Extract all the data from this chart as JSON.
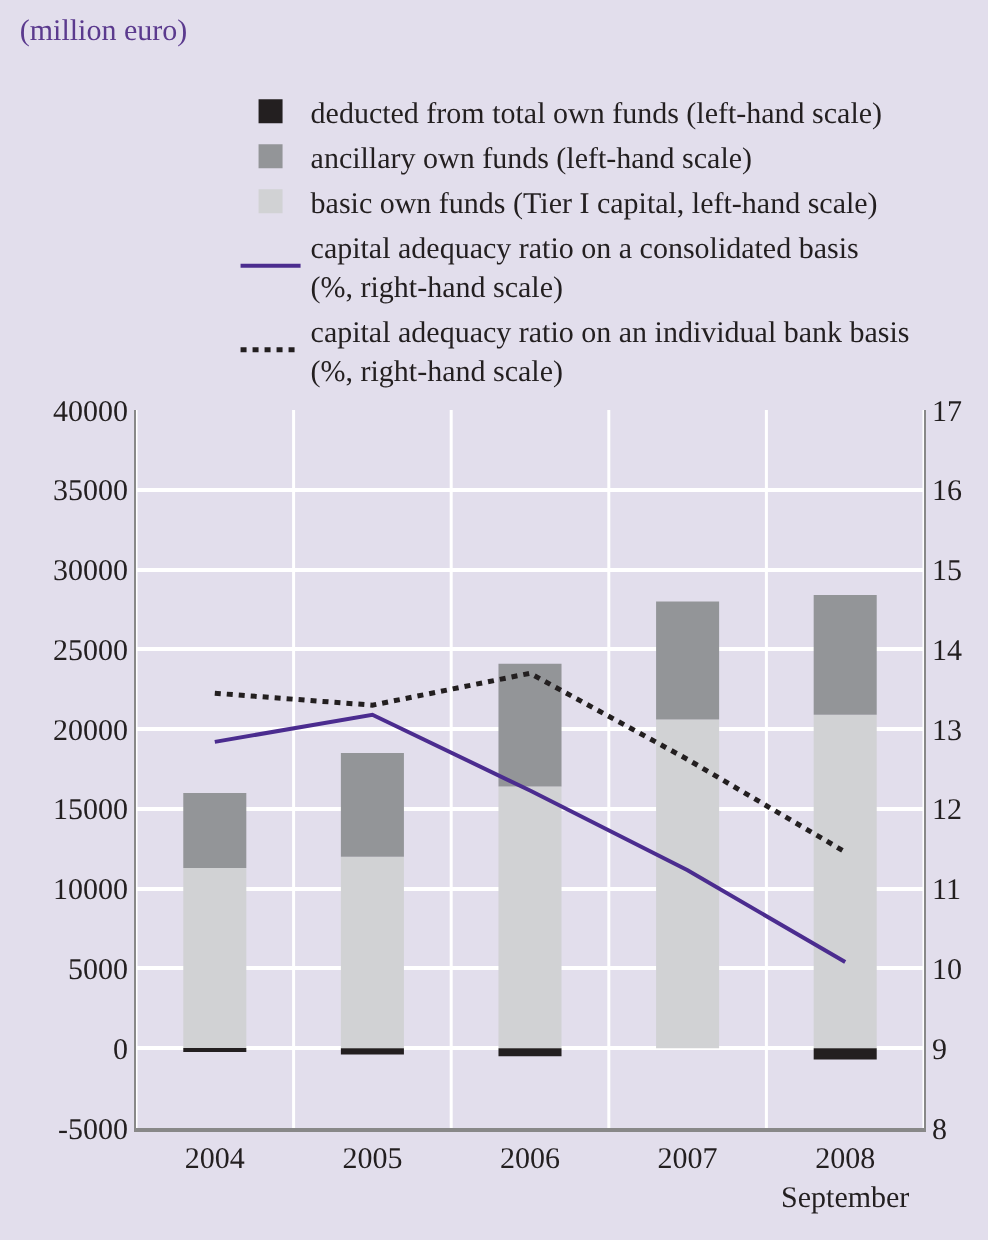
{
  "chart_data": {
    "type": "bar",
    "title": "(million euro)",
    "categories": [
      "2004",
      "2005",
      "2006",
      "2007",
      "2008\nSeptember"
    ],
    "stacked": true,
    "series": [
      {
        "name": "basic own funds (Tier I capital, left-hand scale)",
        "color": "#d1d2d4",
        "values": [
          11300,
          12000,
          16400,
          20600,
          20900
        ]
      },
      {
        "name": "ancillary own funds (left-hand scale)",
        "color": "#939598",
        "values": [
          4700,
          6500,
          7700,
          7400,
          7500
        ]
      },
      {
        "name": "deducted from total own funds (left-hand scale)",
        "color": "#231f20",
        "values": [
          -200,
          -400,
          -500,
          0,
          -700
        ]
      },
      {
        "name": "capital adequacy ratio on a consolidated basis\n(%, right-hand scale)",
        "type": "line",
        "axis": "y2",
        "color": "#4b2c8f",
        "line_style": "solid",
        "values": [
          12.84,
          13.18,
          12.23,
          11.23,
          10.08
        ]
      },
      {
        "name": "capital adequacy ratio on an individual bank basis\n(%, right-hand scale)",
        "type": "line",
        "axis": "y2",
        "color": "#231f20",
        "line_style": "dotted",
        "values": [
          13.45,
          13.3,
          13.7,
          12.62,
          11.46
        ]
      }
    ],
    "ylim": [
      -5000,
      40000
    ],
    "yticks": [
      -5000,
      0,
      5000,
      10000,
      15000,
      20000,
      25000,
      30000,
      35000,
      40000
    ],
    "y2lim": [
      8,
      17
    ],
    "y2ticks": [
      8,
      9,
      10,
      11,
      12,
      13,
      14,
      15,
      16,
      17
    ],
    "grid": true,
    "legend": "top",
    "marker": "none"
  }
}
